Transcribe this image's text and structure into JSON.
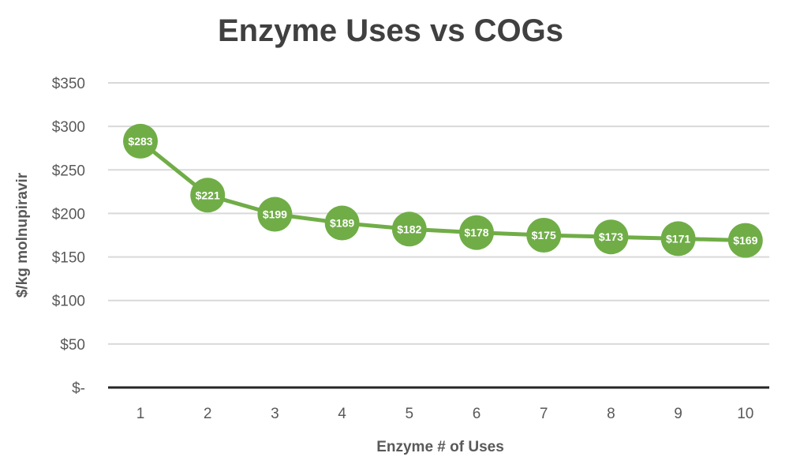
{
  "colors": {
    "series": "#70ad47",
    "grid": "#d9d9d9",
    "axis": "#262626",
    "text": "#595959",
    "title": "#404040"
  },
  "chart_data": {
    "type": "line",
    "title": "Enzyme Uses vs COGs",
    "xlabel": "Enzyme # of Uses",
    "ylabel": "$/kg molnupiravir",
    "x": [
      1,
      2,
      3,
      4,
      5,
      6,
      7,
      8,
      9,
      10
    ],
    "series": [
      {
        "values": [
          283,
          221,
          199,
          189,
          182,
          178,
          175,
          173,
          171,
          169
        ],
        "data_labels": [
          "$283",
          "$221",
          "$199",
          "$189",
          "$182",
          "$178",
          "$175",
          "$173",
          "$171",
          "$169"
        ]
      }
    ],
    "ylim": [
      0,
      350
    ],
    "y_ticks": [
      0,
      50,
      100,
      150,
      200,
      250,
      300,
      350
    ],
    "y_tick_labels": [
      "$-",
      "$50",
      "$100",
      "$150",
      "$200",
      "$250",
      "$300",
      "$350"
    ],
    "x_tick_labels": [
      "1",
      "2",
      "3",
      "4",
      "5",
      "6",
      "7",
      "8",
      "9",
      "10"
    ],
    "grid": true,
    "legend": "none",
    "markers": "filled-circle"
  }
}
